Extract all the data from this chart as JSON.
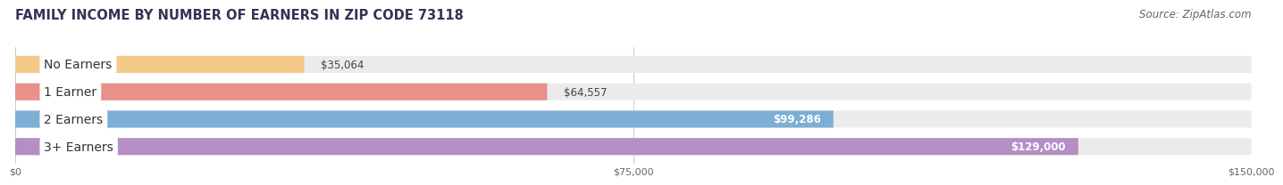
{
  "title": "FAMILY INCOME BY NUMBER OF EARNERS IN ZIP CODE 73118",
  "source": "Source: ZipAtlas.com",
  "categories": [
    "No Earners",
    "1 Earner",
    "2 Earners",
    "3+ Earners"
  ],
  "values": [
    35064,
    64557,
    99286,
    129000
  ],
  "bar_colors": [
    "#f5c98a",
    "#e8908a",
    "#7bafd4",
    "#b48ec4"
  ],
  "track_color": "#ebebeb",
  "max_value": 150000,
  "label_inside": [
    false,
    false,
    true,
    true
  ],
  "value_labels": [
    "$35,064",
    "$64,557",
    "$99,286",
    "$129,000"
  ],
  "x_ticks": [
    0,
    75000,
    150000
  ],
  "x_tick_labels": [
    "$0",
    "$75,000",
    "$150,000"
  ],
  "background_color": "#ffffff",
  "title_fontsize": 10.5,
  "source_fontsize": 8.5,
  "label_fontsize": 8.5,
  "cat_fontsize": 10
}
